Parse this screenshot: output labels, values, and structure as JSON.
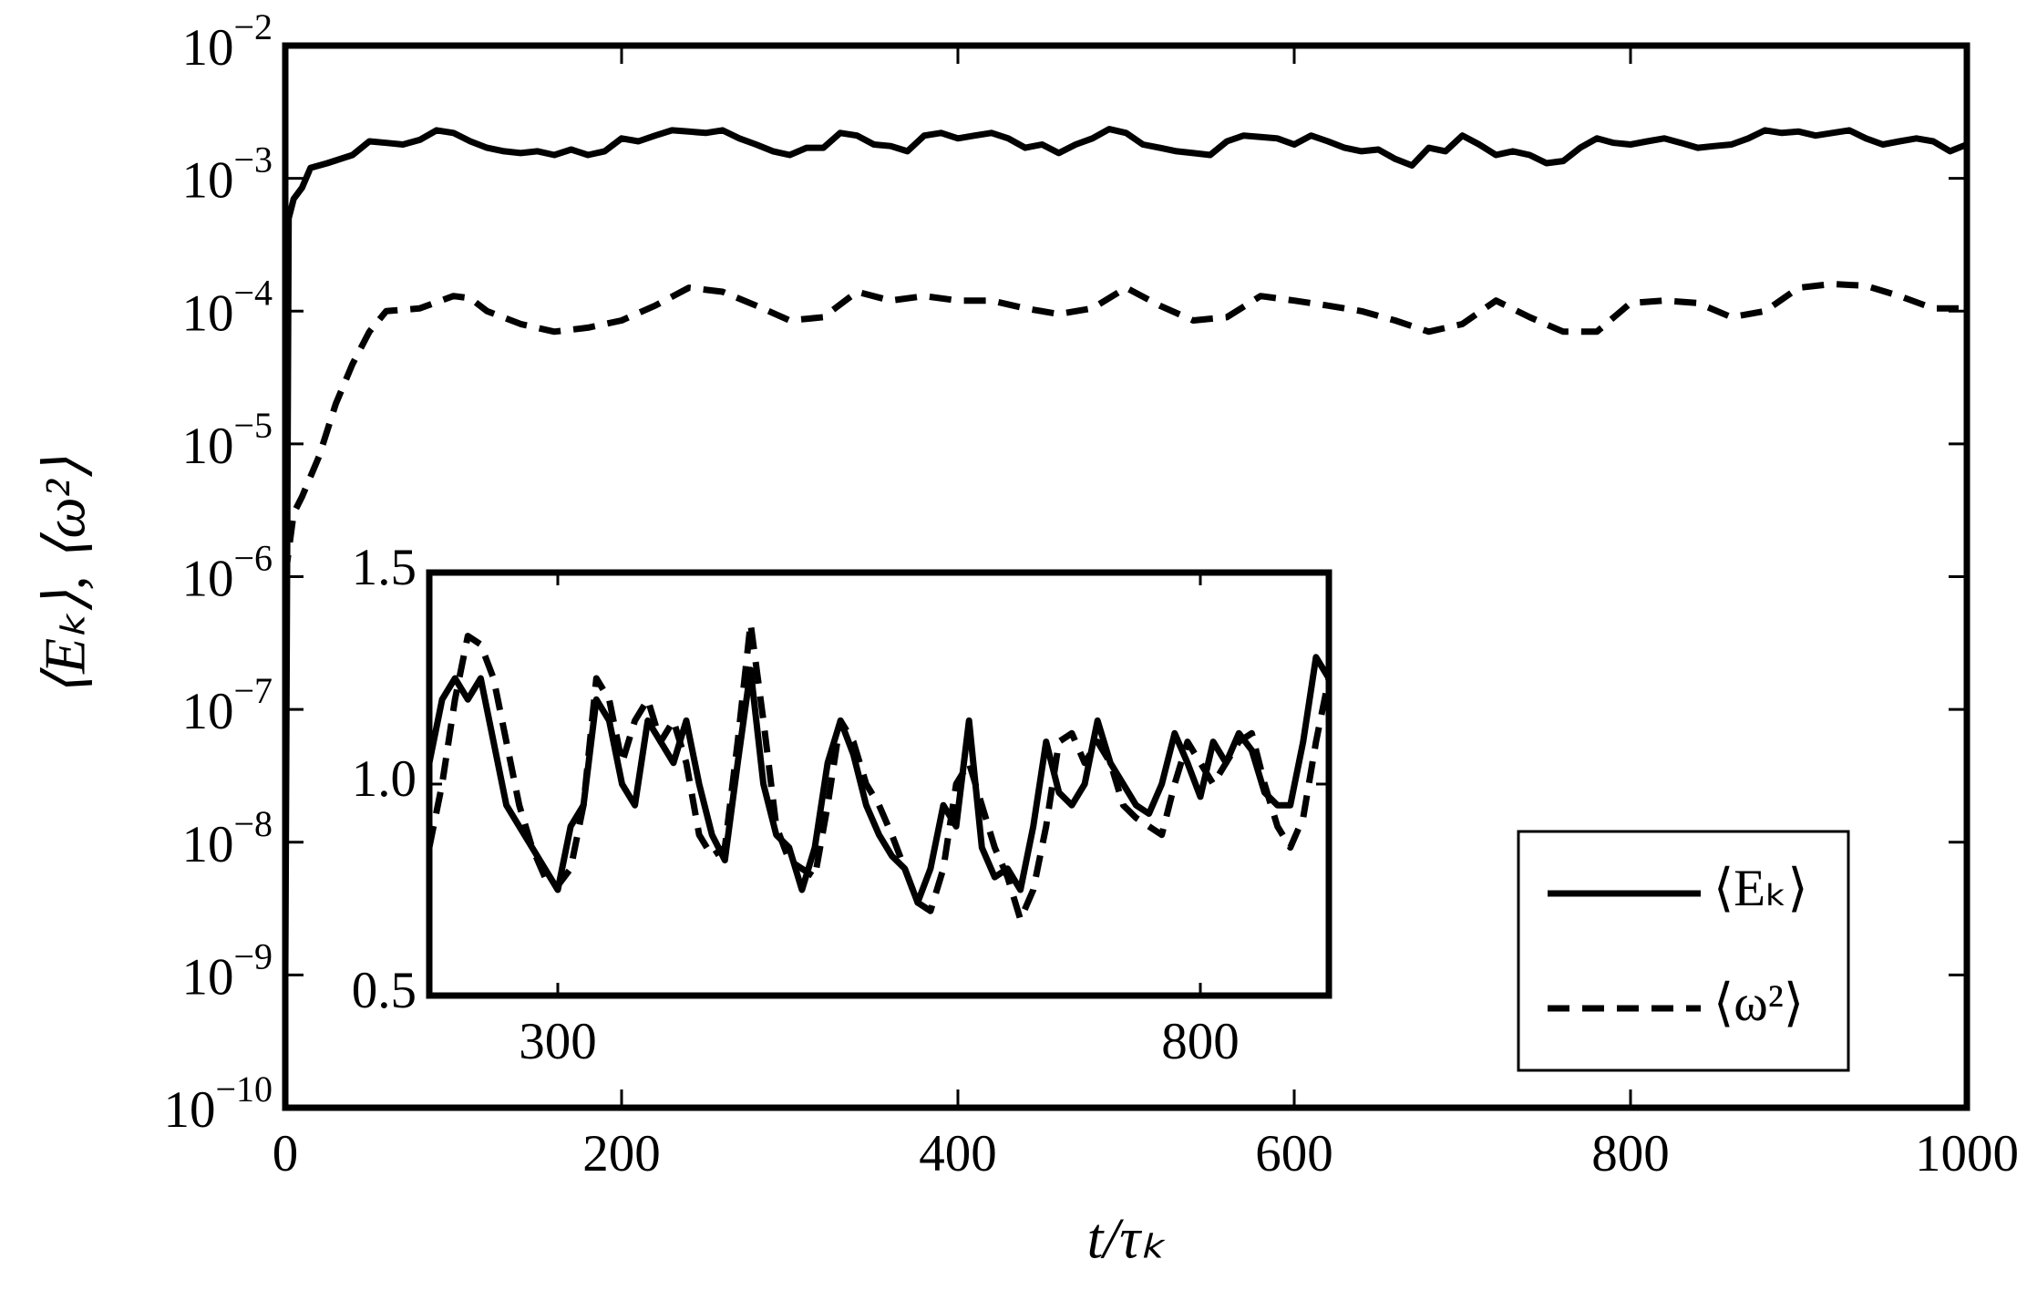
{
  "chart_data": [
    {
      "type": "line",
      "xlabel": "t/τₖ",
      "ylabel": "⟨Eₖ⟩, ⟨ω²⟩",
      "yscale": "log",
      "legend": "lower right",
      "xlim": [
        0,
        1000
      ],
      "xticks": [
        0,
        200,
        400,
        600,
        800,
        1000
      ],
      "ylim": [
        1e-10,
        0.01
      ],
      "yticks": [
        {
          "value": 1e-10,
          "label": "10−10"
        },
        {
          "value": 1e-09,
          "label": "10−9"
        },
        {
          "value": 1e-08,
          "label": "10−8"
        },
        {
          "value": 1e-07,
          "label": "10−7"
        },
        {
          "value": 1e-06,
          "label": "10−6"
        },
        {
          "value": 1e-05,
          "label": "10−5"
        },
        {
          "value": 0.0001,
          "label": "10−4"
        },
        {
          "value": 0.001,
          "label": "10−3"
        },
        {
          "value": 0.01,
          "label": "10−2"
        }
      ],
      "series": [
        {
          "name": "⟨Eₖ⟩",
          "color": "#000000",
          "dash": false,
          "x": [
            0,
            2,
            5,
            10,
            15,
            25,
            40,
            50,
            60,
            70,
            80,
            90,
            100,
            110,
            120,
            130,
            140,
            150,
            160,
            170,
            180,
            190,
            200,
            210,
            220,
            230,
            240,
            250,
            260,
            270,
            280,
            290,
            300,
            310,
            320,
            330,
            340,
            350,
            360,
            370,
            380,
            390,
            400,
            410,
            420,
            430,
            440,
            450,
            460,
            470,
            480,
            490,
            500,
            510,
            520,
            530,
            540,
            550,
            560,
            570,
            580,
            590,
            600,
            610,
            620,
            630,
            640,
            650,
            660,
            670,
            680,
            690,
            700,
            710,
            720,
            730,
            740,
            750,
            760,
            770,
            780,
            790,
            800,
            810,
            820,
            830,
            840,
            850,
            860,
            870,
            880,
            890,
            900,
            910,
            920,
            930,
            940,
            950,
            960,
            970,
            980,
            990,
            1000
          ],
          "values": [
            1e-09,
            0.0005,
            0.0007,
            0.00085,
            0.0012,
            0.0013,
            0.0015,
            0.0019,
            0.00185,
            0.0018,
            0.00195,
            0.0023,
            0.0022,
            0.0019,
            0.0017,
            0.0016,
            0.00155,
            0.0016,
            0.0015,
            0.00165,
            0.0015,
            0.0016,
            0.002,
            0.0019,
            0.0021,
            0.0023,
            0.00225,
            0.0022,
            0.0023,
            0.002,
            0.0018,
            0.0016,
            0.0015,
            0.0017,
            0.0017,
            0.0022,
            0.0021,
            0.0018,
            0.00175,
            0.0016,
            0.0021,
            0.0022,
            0.002,
            0.0021,
            0.0022,
            0.002,
            0.0017,
            0.0018,
            0.00155,
            0.0018,
            0.002,
            0.00235,
            0.0022,
            0.0018,
            0.0017,
            0.0016,
            0.00155,
            0.0015,
            0.0019,
            0.0021,
            0.00205,
            0.002,
            0.0018,
            0.0021,
            0.0019,
            0.0017,
            0.0016,
            0.00165,
            0.0014,
            0.00125,
            0.0017,
            0.0016,
            0.0021,
            0.0018,
            0.0015,
            0.0016,
            0.0015,
            0.0013,
            0.00135,
            0.0017,
            0.002,
            0.00185,
            0.0018,
            0.0019,
            0.002,
            0.00185,
            0.0017,
            0.00175,
            0.0018,
            0.002,
            0.0023,
            0.0022,
            0.00225,
            0.0021,
            0.0022,
            0.0023,
            0.002,
            0.0018,
            0.0019,
            0.002,
            0.0019,
            0.0016,
            0.0018
          ]
        },
        {
          "name": "⟨ω²⟩",
          "color": "#000000",
          "dash": true,
          "x": [
            0,
            5,
            10,
            20,
            30,
            40,
            50,
            60,
            80,
            100,
            110,
            120,
            140,
            160,
            180,
            200,
            220,
            240,
            260,
            280,
            300,
            320,
            340,
            360,
            380,
            400,
            420,
            440,
            460,
            480,
            500,
            520,
            540,
            560,
            580,
            600,
            620,
            640,
            660,
            680,
            700,
            720,
            740,
            760,
            780,
            800,
            820,
            840,
            860,
            880,
            900,
            920,
            940,
            960,
            980,
            1000
          ],
          "values": [
            1e-06,
            3e-06,
            4e-06,
            8e-06,
            2e-05,
            4e-05,
            7e-05,
            0.0001,
            0.000105,
            0.00013,
            0.000125,
            0.0001,
            8e-05,
            7e-05,
            7.5e-05,
            8.5e-05,
            0.00011,
            0.00015,
            0.00014,
            0.00011,
            8.5e-05,
            9e-05,
            0.00014,
            0.00012,
            0.00013,
            0.00012,
            0.00012,
            0.000105,
            9.5e-05,
            0.000105,
            0.00015,
            0.00011,
            8.5e-05,
            9e-05,
            0.00013,
            0.00012,
            0.00011,
            0.0001,
            8.5e-05,
            7e-05,
            8e-05,
            0.00012,
            9e-05,
            7e-05,
            7e-05,
            0.000115,
            0.00012,
            0.000115,
            9e-05,
            0.0001,
            0.00015,
            0.00016,
            0.000155,
            0.00013,
            0.000105,
            0.000105
          ]
        }
      ]
    },
    {
      "type": "line",
      "xlim": [
        200,
        900
      ],
      "xticks": [
        300,
        800
      ],
      "ylim": [
        0.5,
        1.5
      ],
      "yticks": [
        0.5,
        {
          "value": 1,
          "label": "1.0"
        },
        1.5
      ],
      "x": [
        200,
        210,
        220,
        230,
        240,
        250,
        260,
        270,
        280,
        290,
        300,
        310,
        320,
        330,
        340,
        350,
        360,
        370,
        380,
        390,
        400,
        410,
        420,
        430,
        440,
        450,
        460,
        470,
        480,
        490,
        500,
        510,
        520,
        530,
        540,
        550,
        560,
        570,
        580,
        590,
        600,
        610,
        620,
        630,
        640,
        650,
        660,
        670,
        680,
        690,
        700,
        710,
        720,
        730,
        740,
        750,
        760,
        770,
        780,
        790,
        800,
        810,
        820,
        830,
        840,
        850,
        860,
        870,
        880,
        890,
        900
      ],
      "series": [
        {
          "color": "#000000",
          "dash": false,
          "values": [
            1.05,
            1.2,
            1.25,
            1.2,
            1.25,
            1.1,
            0.95,
            0.9,
            0.85,
            0.8,
            0.75,
            0.9,
            0.95,
            1.2,
            1.15,
            1.0,
            0.95,
            1.15,
            1.1,
            1.05,
            1.15,
            1.0,
            0.88,
            0.82,
            1.05,
            1.27,
            1.0,
            0.88,
            0.85,
            0.75,
            0.85,
            1.05,
            1.15,
            1.07,
            0.95,
            0.88,
            0.83,
            0.8,
            0.72,
            0.8,
            0.95,
            0.9,
            1.15,
            0.85,
            0.78,
            0.8,
            0.75,
            0.9,
            1.1,
            0.98,
            0.95,
            1.0,
            1.15,
            1.05,
            1.0,
            0.95,
            0.93,
            1.0,
            1.12,
            1.05,
            0.97,
            1.1,
            1.05,
            1.12,
            1.08,
            0.98,
            0.95,
            0.95,
            1.1,
            1.3,
            1.25
          ]
        },
        {
          "color": "#000000",
          "dash": true,
          "values": [
            0.85,
            1.0,
            1.2,
            1.35,
            1.33,
            1.25,
            1.1,
            0.95,
            0.85,
            0.78,
            0.76,
            0.8,
            0.95,
            1.25,
            1.2,
            1.05,
            1.15,
            1.2,
            1.1,
            1.15,
            1.05,
            0.88,
            0.83,
            0.85,
            1.1,
            1.38,
            1.15,
            0.9,
            0.82,
            0.8,
            0.78,
            0.95,
            1.15,
            1.1,
            1.0,
            0.95,
            0.88,
            0.8,
            0.72,
            0.7,
            0.8,
            1.0,
            1.05,
            0.95,
            0.85,
            0.78,
            0.68,
            0.75,
            0.9,
            1.1,
            1.12,
            1.05,
            1.1,
            1.05,
            0.95,
            0.92,
            0.9,
            0.88,
            1.0,
            1.1,
            1.05,
            1.0,
            1.05,
            1.1,
            1.12,
            1.0,
            0.9,
            0.85,
            0.92,
            1.1,
            1.25
          ]
        }
      ]
    }
  ]
}
